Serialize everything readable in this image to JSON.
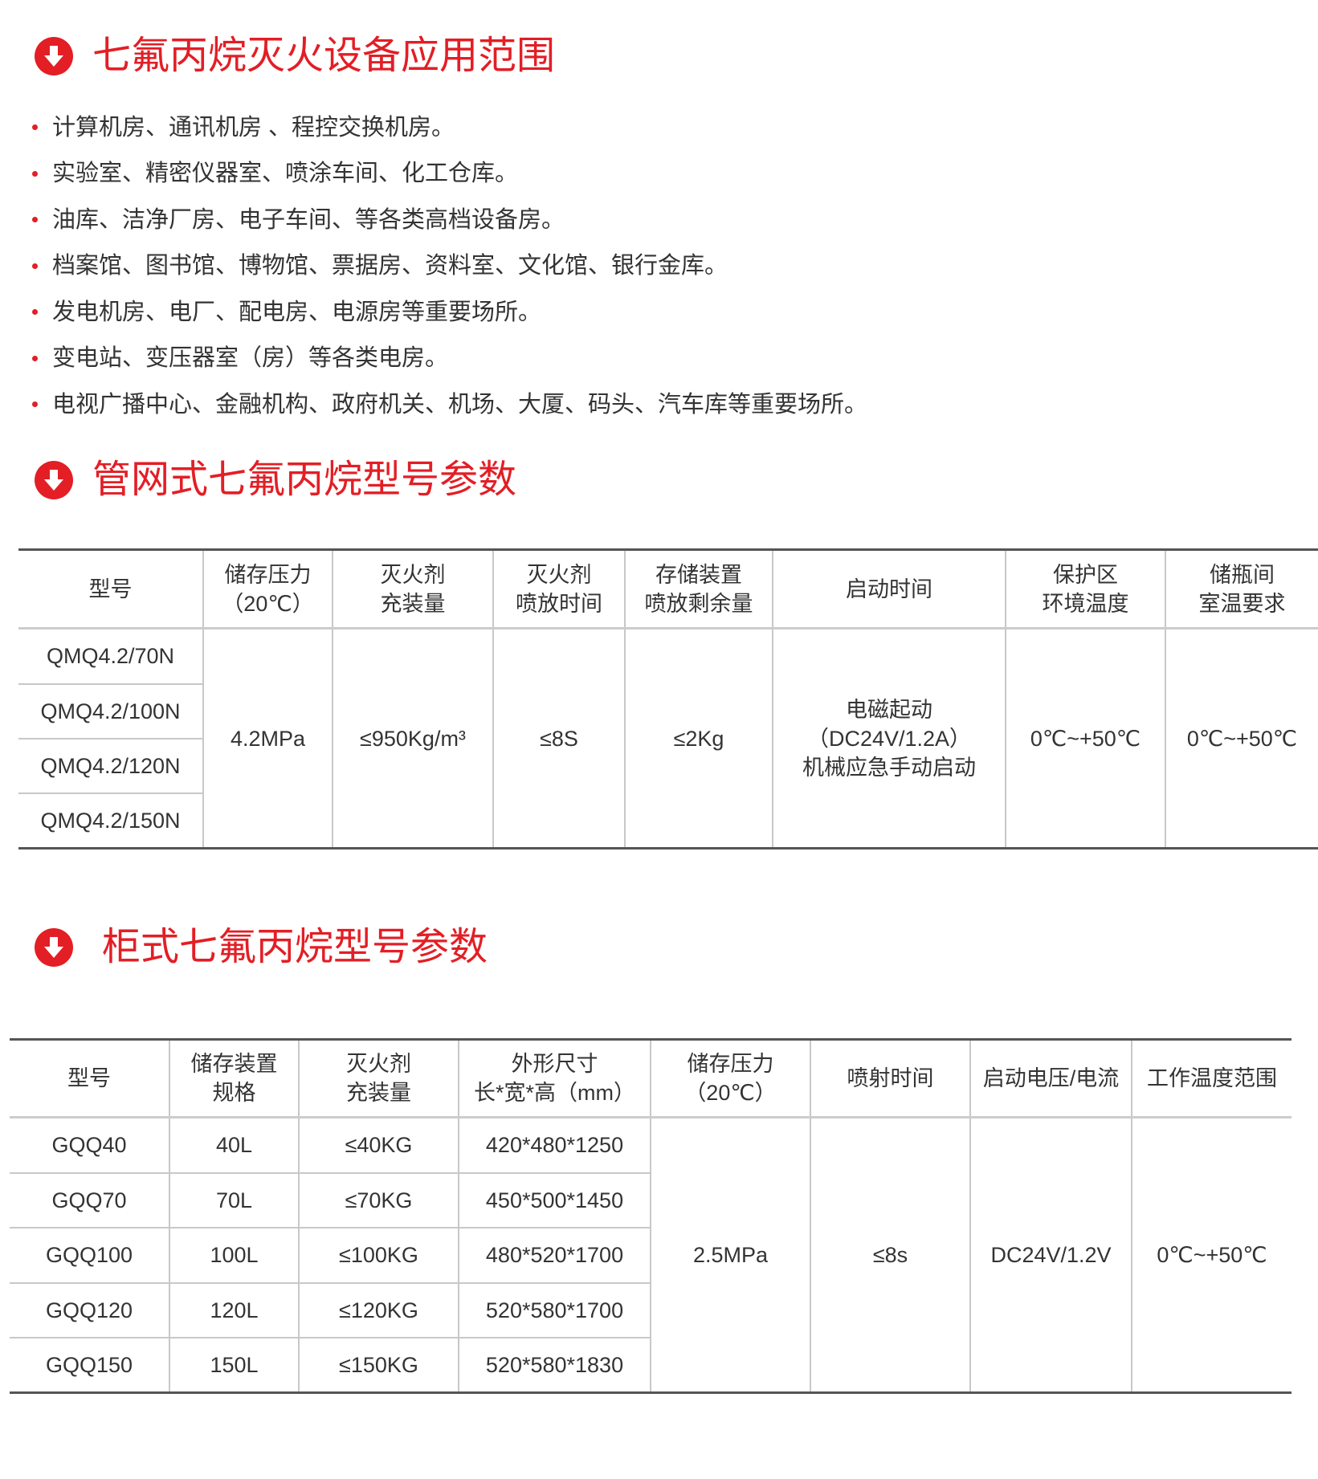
{
  "colors": {
    "accent": "#e31e25",
    "text": "#333333",
    "rule": "#555555"
  },
  "section1": {
    "icon": "arrow-down-circle-icon",
    "title": "七氟丙烷灭火设备应用范围",
    "items": [
      "计算机房、通讯机房 、程控交换机房。",
      "实验室、精密仪器室、喷涂车间、化工仓库。",
      "油库、洁净厂房、电子车间、等各类高档设备房。",
      "档案馆、图书馆、博物馆、票据房、资料室、文化馆、银行金库。",
      "发电机房、电厂、配电房、电源房等重要场所。",
      "变电站、变压器室（房）等各类电房。",
      "电视广播中心、金融机构、政府机关、机场、大厦、码头、汽车库等重要场所。"
    ]
  },
  "section2": {
    "icon": "arrow-down-circle-icon",
    "title": "管网式七氟丙烷型号参数",
    "headers": [
      [
        "型号"
      ],
      [
        "储存压力",
        "（20℃）"
      ],
      [
        "灭火剂",
        "充装量"
      ],
      [
        "灭火剂",
        "喷放时间"
      ],
      [
        "存储装置",
        "喷放剩余量"
      ],
      [
        "启动时间"
      ],
      [
        "保护区",
        "环境温度"
      ],
      [
        "储瓶间",
        "室温要求"
      ]
    ],
    "models": [
      "QMQ4.2/70N",
      "QMQ4.2/100N",
      "QMQ4.2/120N",
      "QMQ4.2/150N"
    ],
    "pressure": "4.2MPa",
    "charge": "≤950Kg/m³",
    "discharge_time": "≤8S",
    "residual": "≤2Kg",
    "start": [
      "电磁起动",
      "（DC24V/1.2A）",
      "机械应急手动启动"
    ],
    "zone_temp": "0℃~+50℃",
    "room_temp": "0℃~+50℃"
  },
  "section3": {
    "icon": "arrow-down-circle-icon",
    "title": "柜式七氟丙烷型号参数",
    "headers": [
      [
        "型号"
      ],
      [
        "储存装置",
        "规格"
      ],
      [
        "灭火剂",
        "充装量"
      ],
      [
        "外形尺寸",
        "长*宽*高（mm）"
      ],
      [
        "储存压力",
        "（20℃）"
      ],
      [
        "喷射时间"
      ],
      [
        "启动电压/电流"
      ],
      [
        "工作温度范围"
      ]
    ],
    "rows": [
      [
        "GQQ40",
        "40L",
        "≤40KG",
        "420*480*1250"
      ],
      [
        "GQQ70",
        "70L",
        "≤70KG",
        "450*500*1450"
      ],
      [
        "GQQ100",
        "100L",
        "≤100KG",
        "480*520*1700"
      ],
      [
        "GQQ120",
        "120L",
        "≤120KG",
        "520*580*1700"
      ],
      [
        "GQQ150",
        "150L",
        "≤150KG",
        "520*580*1830"
      ]
    ],
    "pressure": "2.5MPa",
    "spray_time": "≤8s",
    "voltage": "DC24V/1.2V",
    "temp_range": "0℃~+50℃"
  }
}
